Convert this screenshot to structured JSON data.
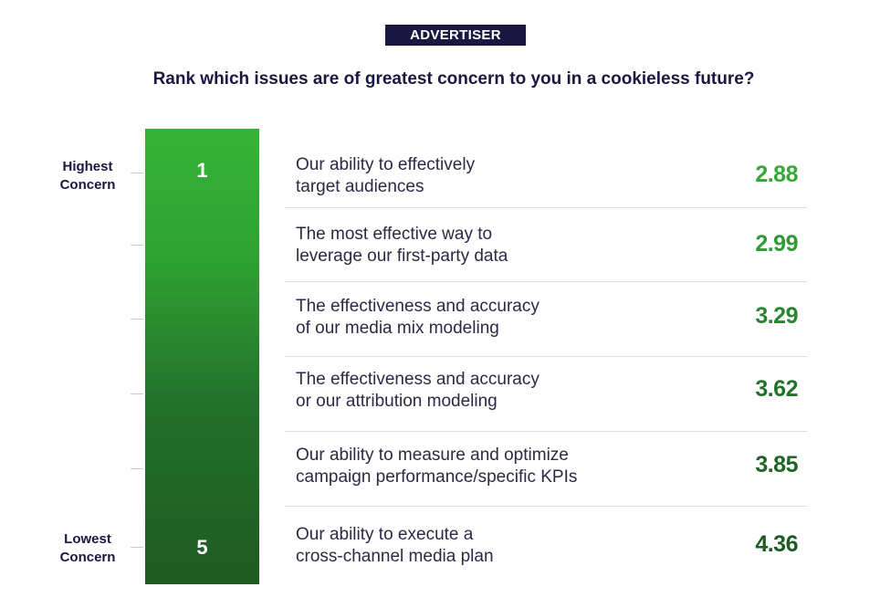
{
  "header": {
    "badge": "ADVERTISER",
    "question": "Rank which issues are of greatest concern to you in a cookieless future?"
  },
  "scale": {
    "top_number": "1",
    "bottom_number": "5",
    "top_label_line1": "Highest",
    "top_label_line2": "Concern",
    "bottom_label_line1": "Lowest",
    "bottom_label_line2": "Concern",
    "gradient_top_color": "#35b336",
    "gradient_bottom_color": "#1e5a22"
  },
  "chart_data": {
    "type": "table",
    "title": "Rank which issues are of greatest concern to you in a cookieless future?",
    "rows": [
      {
        "line1": "Our ability to effectively",
        "line2": "target audiences",
        "value": 2.88,
        "display": "2.88",
        "color": "#35a83a"
      },
      {
        "line1": "The most effective way to",
        "line2": "leverage our first-party data",
        "value": 2.99,
        "display": "2.99",
        "color": "#2f9a35"
      },
      {
        "line1": "The effectiveness and accuracy",
        "line2": "of our media mix modeling",
        "value": 3.29,
        "display": "3.29",
        "color": "#288530"
      },
      {
        "line1": "The effectiveness and accuracy",
        "line2": "or our attribution modeling",
        "value": 3.62,
        "display": "3.62",
        "color": "#227329"
      },
      {
        "line1": "Our ability to measure and optimize",
        "line2": "campaign performance/specific KPIs",
        "value": 3.85,
        "display": "3.85",
        "color": "#1f6525"
      },
      {
        "line1": "Our ability to execute a",
        "line2": "cross-channel media plan",
        "value": 4.36,
        "display": "4.36",
        "color": "#1e5a22"
      }
    ]
  }
}
